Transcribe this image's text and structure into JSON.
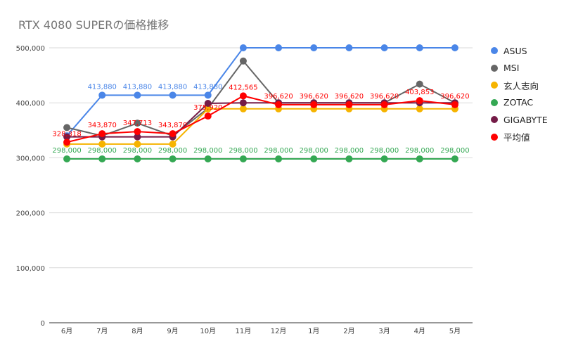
{
  "title": "RTX 4080 SUPERの価格推移",
  "chart_data": {
    "type": "line",
    "title": "RTX 4080 SUPERの価格推移",
    "xlabel": "",
    "ylabel": "",
    "categories": [
      "6月",
      "7月",
      "8月",
      "9月",
      "10月",
      "11月",
      "12月",
      "1月",
      "2月",
      "3月",
      "4月",
      "5月"
    ],
    "ylim": [
      0,
      500000
    ],
    "yticks": [
      "0",
      "100,000",
      "200,000",
      "300,000",
      "400,000",
      "500,000"
    ],
    "ytick_values": [
      0,
      100000,
      200000,
      300000,
      400000,
      500000
    ],
    "grid": true,
    "legend_position": "right",
    "series": [
      {
        "name": "ASUS",
        "color": "#4a86e8",
        "values": [
          340000,
          413880,
          413880,
          413880,
          413880,
          500000,
          500000,
          500000,
          500000,
          500000,
          500000,
          500000
        ],
        "labels": [
          "",
          "413,880",
          "413,880",
          "413,880",
          "413,880",
          "",
          "",
          "",
          "",
          "",
          "",
          ""
        ]
      },
      {
        "name": "MSI",
        "color": "#666666",
        "values": [
          355000,
          340000,
          363000,
          340000,
          390000,
          476000,
          400000,
          400000,
          400000,
          400000,
          434000,
          400000
        ],
        "labels": [
          "",
          "",
          "",
          "",
          "",
          "",
          "",
          "",
          "",
          "",
          "",
          ""
        ]
      },
      {
        "name": "玄人志向",
        "color": "#f6b400",
        "values": [
          325000,
          325000,
          325000,
          325000,
          389000,
          389000,
          389000,
          389000,
          389000,
          389000,
          389000,
          389000
        ],
        "labels": [
          "",
          "",
          "",
          "",
          "",
          "",
          "",
          "",
          "",
          "",
          "",
          ""
        ]
      },
      {
        "name": "ZOTAC",
        "color": "#34a853",
        "values": [
          298000,
          298000,
          298000,
          298000,
          298000,
          298000,
          298000,
          298000,
          298000,
          298000,
          298000,
          298000
        ],
        "labels": [
          "298,000",
          "298,000",
          "298,000",
          "298,000",
          "298,000",
          "298,000",
          "298,000",
          "298,000",
          "298,000",
          "298,000",
          "298,000",
          "298,000"
        ]
      },
      {
        "name": "GIGABYTE",
        "color": "#741b47",
        "values": [
          338000,
          338000,
          338000,
          338000,
          399000,
          400000,
          400000,
          400000,
          400000,
          400000,
          400000,
          400000
        ],
        "labels": [
          "",
          "",
          "",
          "",
          "",
          "",
          "",
          "",
          "",
          "",
          "",
          ""
        ]
      },
      {
        "name": "平均値",
        "color": "#ff0000",
        "values": [
          328318,
          343870,
          347713,
          343870,
          375920,
          412565,
          396620,
          396620,
          396620,
          396620,
          403853,
          396620
        ],
        "labels": [
          "328,318",
          "343,870",
          "347,713",
          "343,870",
          "375,920",
          "412,565",
          "396,620",
          "396,620",
          "396,620",
          "396,620",
          "403,853",
          "396,620"
        ]
      }
    ]
  }
}
